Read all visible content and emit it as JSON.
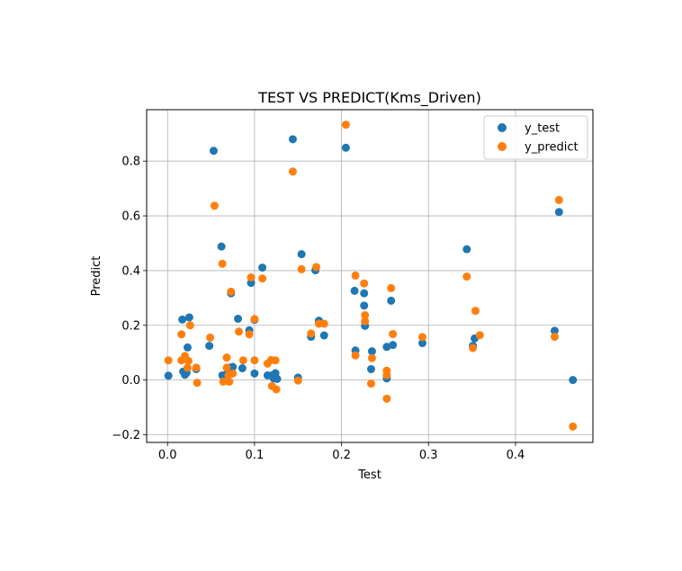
{
  "chart_data": {
    "type": "scatter",
    "title": "TEST VS PREDICT(Kms_Driven)",
    "xlabel": "Test",
    "ylabel": "Predict",
    "xlim": [
      -0.024,
      0.489
    ],
    "ylim": [
      -0.228,
      0.988
    ],
    "xticks": [
      0.0,
      0.1,
      0.2,
      0.3,
      0.4
    ],
    "xtick_labels": [
      "0.0",
      "0.1",
      "0.2",
      "0.3",
      "0.4"
    ],
    "yticks": [
      -0.2,
      0.0,
      0.2,
      0.4,
      0.6,
      0.8
    ],
    "ytick_labels": [
      "−0.2",
      "0.0",
      "0.2",
      "0.4",
      "0.6",
      "0.8"
    ],
    "grid": true,
    "legend_position": "upper-right",
    "series": [
      {
        "name": "y_test",
        "color": "#1f77b4",
        "points": [
          [
            0.001,
            0.016
          ],
          [
            0.017,
            0.221
          ],
          [
            0.018,
            0.031
          ],
          [
            0.02,
            0.019
          ],
          [
            0.022,
            0.027
          ],
          [
            0.023,
            0.119
          ],
          [
            0.025,
            0.229
          ],
          [
            0.033,
            0.04
          ],
          [
            0.048,
            0.125
          ],
          [
            0.053,
            0.838
          ],
          [
            0.062,
            0.488
          ],
          [
            0.063,
            0.017
          ],
          [
            0.068,
            0.021
          ],
          [
            0.072,
            0.045
          ],
          [
            0.073,
            0.317
          ],
          [
            0.075,
            0.048
          ],
          [
            0.081,
            0.224
          ],
          [
            0.086,
            0.043
          ],
          [
            0.094,
            0.182
          ],
          [
            0.096,
            0.355
          ],
          [
            0.1,
            0.22
          ],
          [
            0.1,
            0.024
          ],
          [
            0.109,
            0.411
          ],
          [
            0.115,
            0.017
          ],
          [
            0.12,
            0.017
          ],
          [
            0.122,
            0.006
          ],
          [
            0.124,
            0.025
          ],
          [
            0.126,
            0.004
          ],
          [
            0.144,
            0.88
          ],
          [
            0.15,
            0.009
          ],
          [
            0.154,
            0.46
          ],
          [
            0.165,
            0.158
          ],
          [
            0.17,
            0.401
          ],
          [
            0.174,
            0.217
          ],
          [
            0.18,
            0.163
          ],
          [
            0.205,
            0.849
          ],
          [
            0.215,
            0.326
          ],
          [
            0.216,
            0.108
          ],
          [
            0.226,
            0.317
          ],
          [
            0.226,
            0.272
          ],
          [
            0.227,
            0.198
          ],
          [
            0.234,
            0.04
          ],
          [
            0.235,
            0.105
          ],
          [
            0.252,
            0.121
          ],
          [
            0.252,
            0.006
          ],
          [
            0.257,
            0.29
          ],
          [
            0.259,
            0.128
          ],
          [
            0.293,
            0.135
          ],
          [
            0.344,
            0.478
          ],
          [
            0.351,
            0.125
          ],
          [
            0.353,
            0.152
          ],
          [
            0.445,
            0.18
          ],
          [
            0.45,
            0.614
          ],
          [
            0.466,
            0.0
          ]
        ]
      },
      {
        "name": "y_predict",
        "color": "#ff7f0e",
        "points": [
          [
            0.001,
            0.072
          ],
          [
            0.016,
            0.072
          ],
          [
            0.016,
            0.167
          ],
          [
            0.02,
            0.088
          ],
          [
            0.023,
            0.045
          ],
          [
            0.024,
            0.07
          ],
          [
            0.026,
            0.2
          ],
          [
            0.033,
            0.045
          ],
          [
            0.034,
            -0.01
          ],
          [
            0.049,
            0.155
          ],
          [
            0.054,
            0.637
          ],
          [
            0.063,
            0.425
          ],
          [
            0.064,
            -0.006
          ],
          [
            0.068,
            0.082
          ],
          [
            0.068,
            0.045
          ],
          [
            0.07,
            0.017
          ],
          [
            0.071,
            -0.006
          ],
          [
            0.073,
            0.323
          ],
          [
            0.075,
            0.024
          ],
          [
            0.082,
            0.177
          ],
          [
            0.087,
            0.072
          ],
          [
            0.094,
            0.167
          ],
          [
            0.096,
            0.375
          ],
          [
            0.1,
            0.223
          ],
          [
            0.1,
            0.072
          ],
          [
            0.109,
            0.371
          ],
          [
            0.115,
            0.06
          ],
          [
            0.119,
            0.073
          ],
          [
            0.12,
            -0.022
          ],
          [
            0.124,
            0.072
          ],
          [
            0.125,
            -0.034
          ],
          [
            0.144,
            0.762
          ],
          [
            0.15,
            -0.002
          ],
          [
            0.154,
            0.405
          ],
          [
            0.165,
            0.17
          ],
          [
            0.171,
            0.413
          ],
          [
            0.174,
            0.206
          ],
          [
            0.18,
            0.206
          ],
          [
            0.205,
            0.933
          ],
          [
            0.216,
            0.382
          ],
          [
            0.216,
            0.09
          ],
          [
            0.226,
            0.353
          ],
          [
            0.227,
            0.237
          ],
          [
            0.227,
            0.215
          ],
          [
            0.234,
            -0.013
          ],
          [
            0.235,
            0.08
          ],
          [
            0.252,
            0.034
          ],
          [
            0.252,
            0.018
          ],
          [
            0.252,
            -0.068
          ],
          [
            0.257,
            0.336
          ],
          [
            0.259,
            0.168
          ],
          [
            0.293,
            0.157
          ],
          [
            0.344,
            0.378
          ],
          [
            0.351,
            0.117
          ],
          [
            0.354,
            0.253
          ],
          [
            0.359,
            0.164
          ],
          [
            0.445,
            0.158
          ],
          [
            0.45,
            0.658
          ],
          [
            0.466,
            -0.17
          ]
        ]
      }
    ]
  }
}
